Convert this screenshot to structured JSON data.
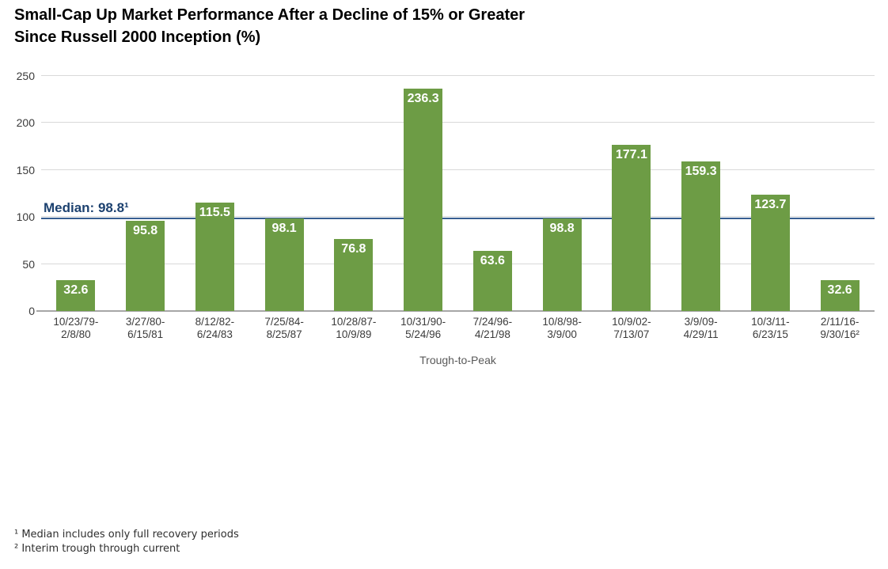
{
  "header": {
    "title_line1": "Small-Cap Up Market Performance After a Decline of 15% or Greater",
    "title_line2": "Since Russell 2000 Inception (%)"
  },
  "chart_data": {
    "type": "bar",
    "title": "Small-Cap Up Market Performance After a Decline of 15% or Greater Since Russell 2000 Inception (%)",
    "categories": [
      "10/23/79-\n2/8/80",
      "3/27/80-\n6/15/81",
      "8/12/82-\n6/24/83",
      "7/25/84-\n8/25/87",
      "10/28/87-\n10/9/89",
      "10/31/90-\n5/24/96",
      "7/24/96-\n4/21/98",
      "10/8/98-\n3/9/00",
      "10/9/02-\n7/13/07",
      "3/9/09-\n4/29/11",
      "10/3/11-\n6/23/15",
      "2/11/16-\n9/30/16²"
    ],
    "values": [
      32.6,
      95.8,
      115.5,
      98.1,
      76.8,
      236.3,
      63.6,
      98.8,
      177.1,
      159.3,
      123.7,
      32.6
    ],
    "xlabel": "Trough-to-Peak",
    "ylabel": "",
    "ylim": [
      0,
      250
    ],
    "yticks": [
      0,
      50,
      100,
      150,
      200,
      250
    ],
    "grid": true,
    "legend": "none",
    "median_line": {
      "value": 98.8,
      "label": "Median: 98.8¹"
    },
    "colors": {
      "bar": "#6d9c45",
      "bar_label": "#ffffff",
      "median_line": "#375e91",
      "median_label": "#1c416f",
      "gridline": "#d9d9d9",
      "baseline": "#a6a6a6"
    }
  },
  "footnotes": [
    "¹ Median includes only full recovery periods",
    "² Interim trough through current"
  ]
}
